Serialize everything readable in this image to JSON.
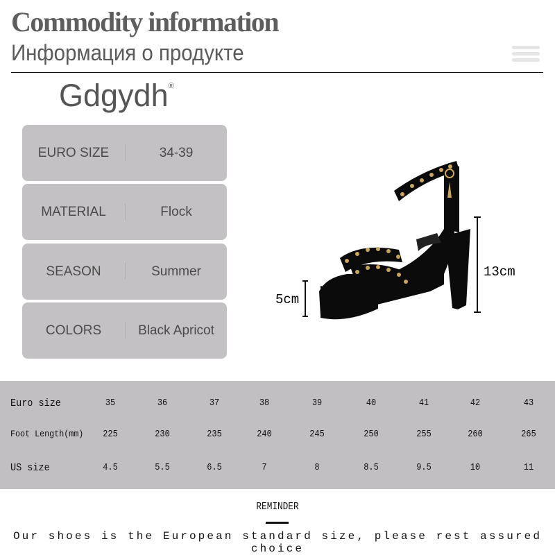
{
  "header": {
    "title": "Commodity information",
    "subtitle": "Информация о продукте",
    "menu_icon": "hamburger-icon"
  },
  "brand": {
    "name": "Gdgydh",
    "mark": "®"
  },
  "specs": [
    {
      "label": "EURO SIZE",
      "value": "34-39"
    },
    {
      "label": "MATERIAL",
      "value": "Flock"
    },
    {
      "label": "SEASON",
      "value": "Summer"
    },
    {
      "label": "COLORS",
      "value": "Black Apricot"
    }
  ],
  "product": {
    "heel_height": "13cm",
    "platform_height": "5cm",
    "color": "#0b0b0b",
    "stud_color": "#c9a65a"
  },
  "size_table": {
    "rows": [
      {
        "label": "Euro size",
        "values": [
          "35",
          "36",
          "37",
          "38",
          "39",
          "40",
          "41",
          "42",
          "43"
        ]
      },
      {
        "label": "Foot Length(mm)",
        "values": [
          "225",
          "230",
          "235",
          "240",
          "245",
          "250",
          "255",
          "260",
          "265"
        ]
      },
      {
        "label": "US size",
        "values": [
          "4.5",
          "5.5",
          "6.5",
          "7",
          "8",
          "8.5",
          "9.5",
          "10",
          "11"
        ]
      }
    ]
  },
  "reminder": {
    "title": "REMINDER",
    "text": "Our shoes is the European standard size, please rest assured choice"
  }
}
